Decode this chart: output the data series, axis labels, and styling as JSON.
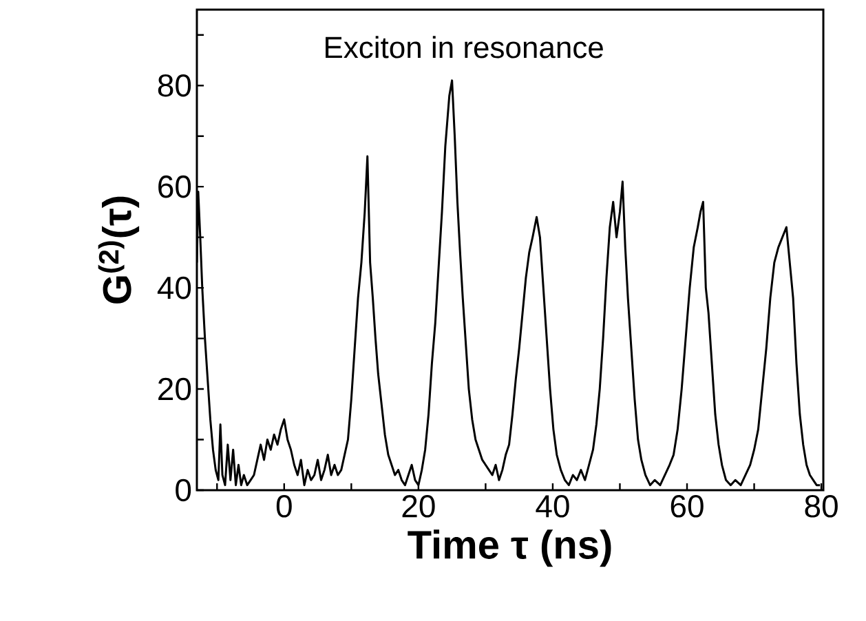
{
  "chart_data": {
    "type": "line",
    "title": "Exciton in resonance",
    "xlabel": "Time τ (ns)",
    "ylabel": "G$^{(2)}$(τ)",
    "xlim": [
      -13,
      80.3
    ],
    "ylim": [
      0,
      95
    ],
    "xticks": [
      {
        "value": -10,
        "label": null
      },
      0,
      {
        "value": 10,
        "label": null
      },
      20,
      {
        "value": 30,
        "label": null
      },
      40,
      {
        "value": 50,
        "label": null
      },
      60,
      {
        "value": 70,
        "label": null
      },
      80
    ],
    "yticks": [
      0,
      {
        "value": 10,
        "label": null
      },
      20,
      {
        "value": 30,
        "label": null
      },
      40,
      {
        "value": 50,
        "label": null
      },
      60,
      {
        "value": 70,
        "label": null
      },
      80,
      {
        "value": 90,
        "label": null
      }
    ],
    "marker": "none",
    "line_style": "solid",
    "series": [
      {
        "color": "#000000",
        "x": [
          -13.0,
          -12.8,
          -12.5,
          -12.2,
          -11.8,
          -11.4,
          -11.0,
          -10.6,
          -10.2,
          -9.8,
          -9.5,
          -9.2,
          -8.8,
          -8.4,
          -8.0,
          -7.6,
          -7.2,
          -6.8,
          -6.4,
          -6.0,
          -5.5,
          -5.0,
          -4.5,
          -4.0,
          -3.5,
          -3.0,
          -2.5,
          -2.0,
          -1.5,
          -1.0,
          -0.5,
          0.0,
          0.5,
          1.0,
          1.5,
          2.0,
          2.5,
          3.0,
          3.5,
          4.0,
          4.5,
          5.0,
          5.5,
          6.0,
          6.5,
          7.0,
          7.5,
          8.0,
          8.5,
          9.0,
          9.5,
          10.0,
          10.5,
          11.0,
          11.5,
          12.0,
          12.4,
          12.8,
          13.2,
          13.6,
          14.0,
          14.5,
          15.0,
          15.5,
          16.0,
          16.5,
          17.0,
          17.5,
          18.0,
          18.5,
          19.0,
          19.5,
          20.0,
          20.5,
          21.0,
          21.5,
          22.0,
          22.5,
          23.0,
          23.5,
          24.0,
          24.6,
          25.0,
          25.4,
          25.8,
          26.2,
          26.6,
          27.0,
          27.5,
          28.0,
          28.5,
          29.0,
          29.5,
          30.0,
          30.5,
          31.0,
          31.5,
          32.0,
          32.5,
          33.0,
          33.5,
          34.0,
          34.5,
          35.0,
          35.5,
          36.0,
          36.5,
          37.0,
          37.6,
          38.1,
          38.6,
          39.1,
          39.6,
          40.1,
          40.6,
          41.2,
          41.8,
          42.4,
          43.0,
          43.6,
          44.2,
          44.8,
          45.4,
          46.0,
          46.5,
          47.0,
          47.5,
          48.0,
          48.5,
          49.0,
          49.5,
          50.0,
          50.4,
          50.8,
          51.2,
          51.7,
          52.2,
          52.7,
          53.2,
          53.8,
          54.5,
          55.2,
          56.0,
          56.7,
          57.4,
          58.0,
          58.6,
          59.2,
          59.8,
          60.4,
          61.0,
          61.6,
          62.0,
          62.4,
          62.8,
          63.2,
          63.7,
          64.2,
          64.7,
          65.2,
          65.8,
          66.5,
          67.2,
          68.0,
          68.7,
          69.4,
          70.0,
          70.6,
          71.2,
          71.8,
          72.4,
          73.0,
          73.6,
          74.2,
          74.8,
          75.3,
          75.8,
          76.3,
          76.8,
          77.3,
          77.8,
          78.3,
          78.8,
          79.3,
          79.8
        ],
        "values": [
          45,
          59,
          50,
          40,
          30,
          22,
          14,
          8,
          4,
          2,
          13,
          3,
          1,
          9,
          2,
          8,
          1,
          5,
          1,
          3,
          1,
          2,
          3,
          6,
          9,
          6,
          10,
          8,
          11,
          9,
          12,
          14,
          10,
          8,
          5,
          3,
          6,
          1,
          4,
          2,
          3,
          6,
          2,
          4,
          7,
          3,
          5,
          3,
          4,
          7,
          10,
          18,
          28,
          38,
          45,
          55,
          66,
          45,
          38,
          30,
          23,
          17,
          11,
          7,
          5,
          3,
          4,
          2,
          1,
          3,
          5,
          2,
          1,
          4,
          8,
          15,
          25,
          33,
          44,
          55,
          68,
          78,
          81,
          70,
          57,
          47,
          38,
          30,
          20,
          14,
          10,
          8,
          6,
          5,
          4,
          3,
          5,
          2,
          4,
          7,
          9,
          15,
          22,
          28,
          35,
          42,
          47,
          50,
          54,
          50,
          40,
          30,
          20,
          12,
          7,
          4,
          2,
          1,
          3,
          2,
          4,
          2,
          5,
          8,
          13,
          20,
          30,
          42,
          52,
          57,
          50,
          55,
          61,
          48,
          38,
          28,
          18,
          10,
          6,
          3,
          1,
          2,
          1,
          3,
          5,
          7,
          12,
          20,
          30,
          40,
          48,
          52,
          55,
          57,
          40,
          35,
          25,
          15,
          9,
          5,
          2,
          1,
          2,
          1,
          3,
          5,
          8,
          12,
          20,
          28,
          38,
          45,
          48,
          50,
          52,
          45,
          38,
          25,
          15,
          9,
          5,
          3,
          2,
          1,
          1
        ]
      }
    ]
  }
}
